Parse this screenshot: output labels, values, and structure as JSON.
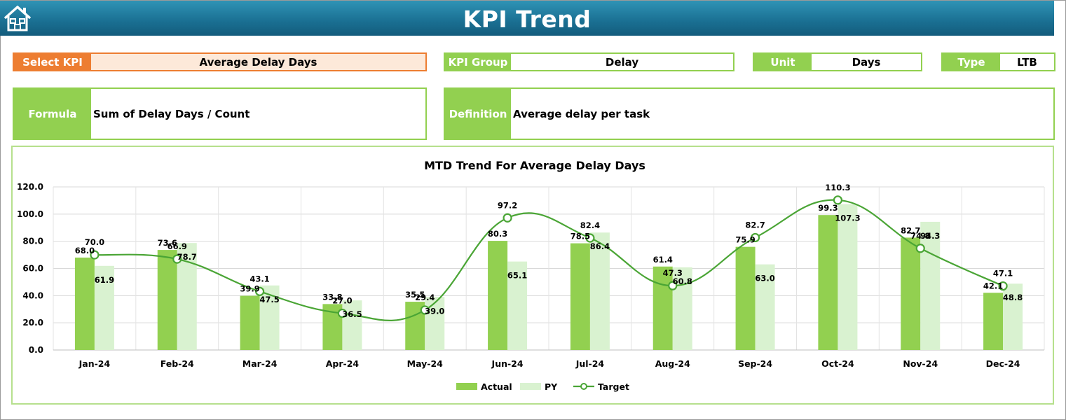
{
  "header": {
    "title": "KPI Trend",
    "home_icon": "home-icon"
  },
  "select_kpi": {
    "label": "Select KPI",
    "value": "Average Delay Days"
  },
  "kpi_group": {
    "label": "KPI Group",
    "value": "Delay"
  },
  "unit": {
    "label": "Unit",
    "value": "Days"
  },
  "type": {
    "label": "Type",
    "value": "LTB"
  },
  "formula": {
    "label": "Formula",
    "value": "Sum of Delay Days / Count"
  },
  "definition": {
    "label": "Definition",
    "value": "Average delay per task"
  },
  "colors": {
    "header": "#1a6f92",
    "select_accent": "#ed7d31",
    "select_bg": "#fde9d9",
    "green": "#92d050",
    "py": "#d9f2d0",
    "target": "#4aa535"
  },
  "chart_data": {
    "type": "bar",
    "title": "MTD Trend For Average Delay Days",
    "categories": [
      "Jan-24",
      "Feb-24",
      "Mar-24",
      "Apr-24",
      "May-24",
      "Jun-24",
      "Jul-24",
      "Aug-24",
      "Sep-24",
      "Oct-24",
      "Nov-24",
      "Dec-24"
    ],
    "series": [
      {
        "name": "Actual",
        "kind": "bar",
        "color": "#92d050",
        "values": [
          68.0,
          73.6,
          39.9,
          33.8,
          35.5,
          80.3,
          78.5,
          61.4,
          75.9,
          99.3,
          82.7,
          42.1
        ]
      },
      {
        "name": "PY",
        "kind": "bar",
        "color": "#d9f2d0",
        "values": [
          61.9,
          78.7,
          47.5,
          36.5,
          39.0,
          65.1,
          86.4,
          60.8,
          63.0,
          107.3,
          94.3,
          48.8
        ]
      },
      {
        "name": "Target",
        "kind": "line",
        "color": "#4aa535",
        "values": [
          70.0,
          66.9,
          43.1,
          27.0,
          29.4,
          97.2,
          82.4,
          47.3,
          82.7,
          110.3,
          74.8,
          47.1
        ]
      }
    ],
    "y_ticks": [
      "0.0",
      "20.0",
      "40.0",
      "60.0",
      "80.0",
      "100.0",
      "120.0"
    ],
    "ylim": [
      0,
      120
    ],
    "grid": true,
    "legend": "bottom"
  }
}
